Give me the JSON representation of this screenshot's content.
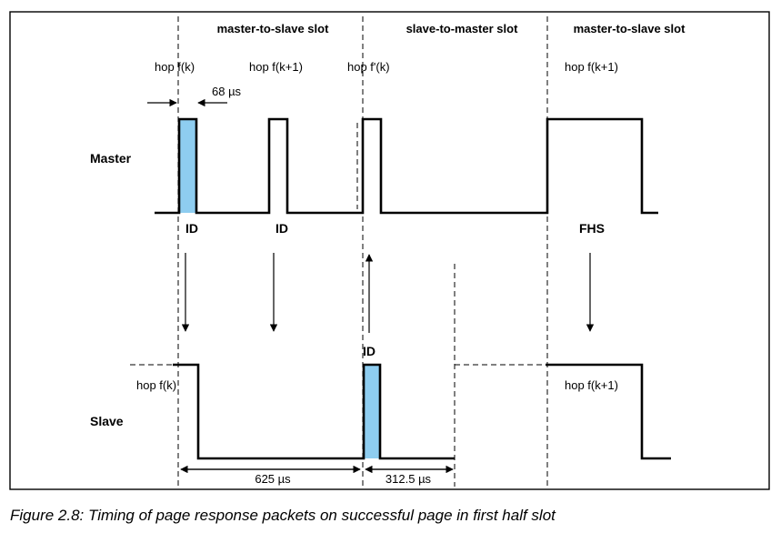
{
  "slots": {
    "slot1": "master-to-slave slot",
    "slot2": "slave-to-master slot",
    "slot3": "master-to-slave slot"
  },
  "master": {
    "label": "Master",
    "hops": [
      "hop f(k)",
      "hop f(k+1)",
      "hop f'(k)",
      "hop f(k+1)"
    ],
    "width_label": "68 µs",
    "packets": [
      "ID",
      "ID",
      "FHS"
    ]
  },
  "slave": {
    "label": "Slave",
    "hops": [
      "hop f(k)",
      "hop f(k+1)"
    ],
    "packet": "ID"
  },
  "timing": {
    "t1": "625 µs",
    "t2": "312.5 µs"
  },
  "caption": "Figure 2.8:  Timing of page response packets on successful page in first half slot",
  "colors": {
    "packet_fill": "#8ecdf0"
  }
}
